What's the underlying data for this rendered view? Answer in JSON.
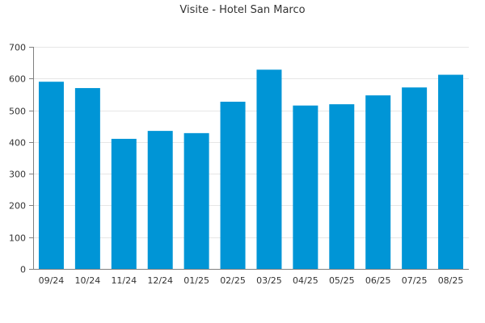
{
  "chart_data": {
    "type": "bar",
    "title": "Visite - Hotel San Marco",
    "xlabel": "",
    "ylabel": "",
    "categories": [
      "09/24",
      "10/24",
      "11/24",
      "12/24",
      "01/25",
      "02/25",
      "03/25",
      "04/25",
      "05/25",
      "06/25",
      "07/25",
      "08/25"
    ],
    "values": [
      590,
      570,
      410,
      435,
      428,
      527,
      628,
      515,
      519,
      547,
      572,
      612
    ],
    "ylim": [
      0,
      700
    ],
    "yticks": [
      0,
      100,
      200,
      300,
      400,
      500,
      600,
      700
    ],
    "grid": true,
    "legend": "none",
    "bar_color": "#0095d6"
  }
}
